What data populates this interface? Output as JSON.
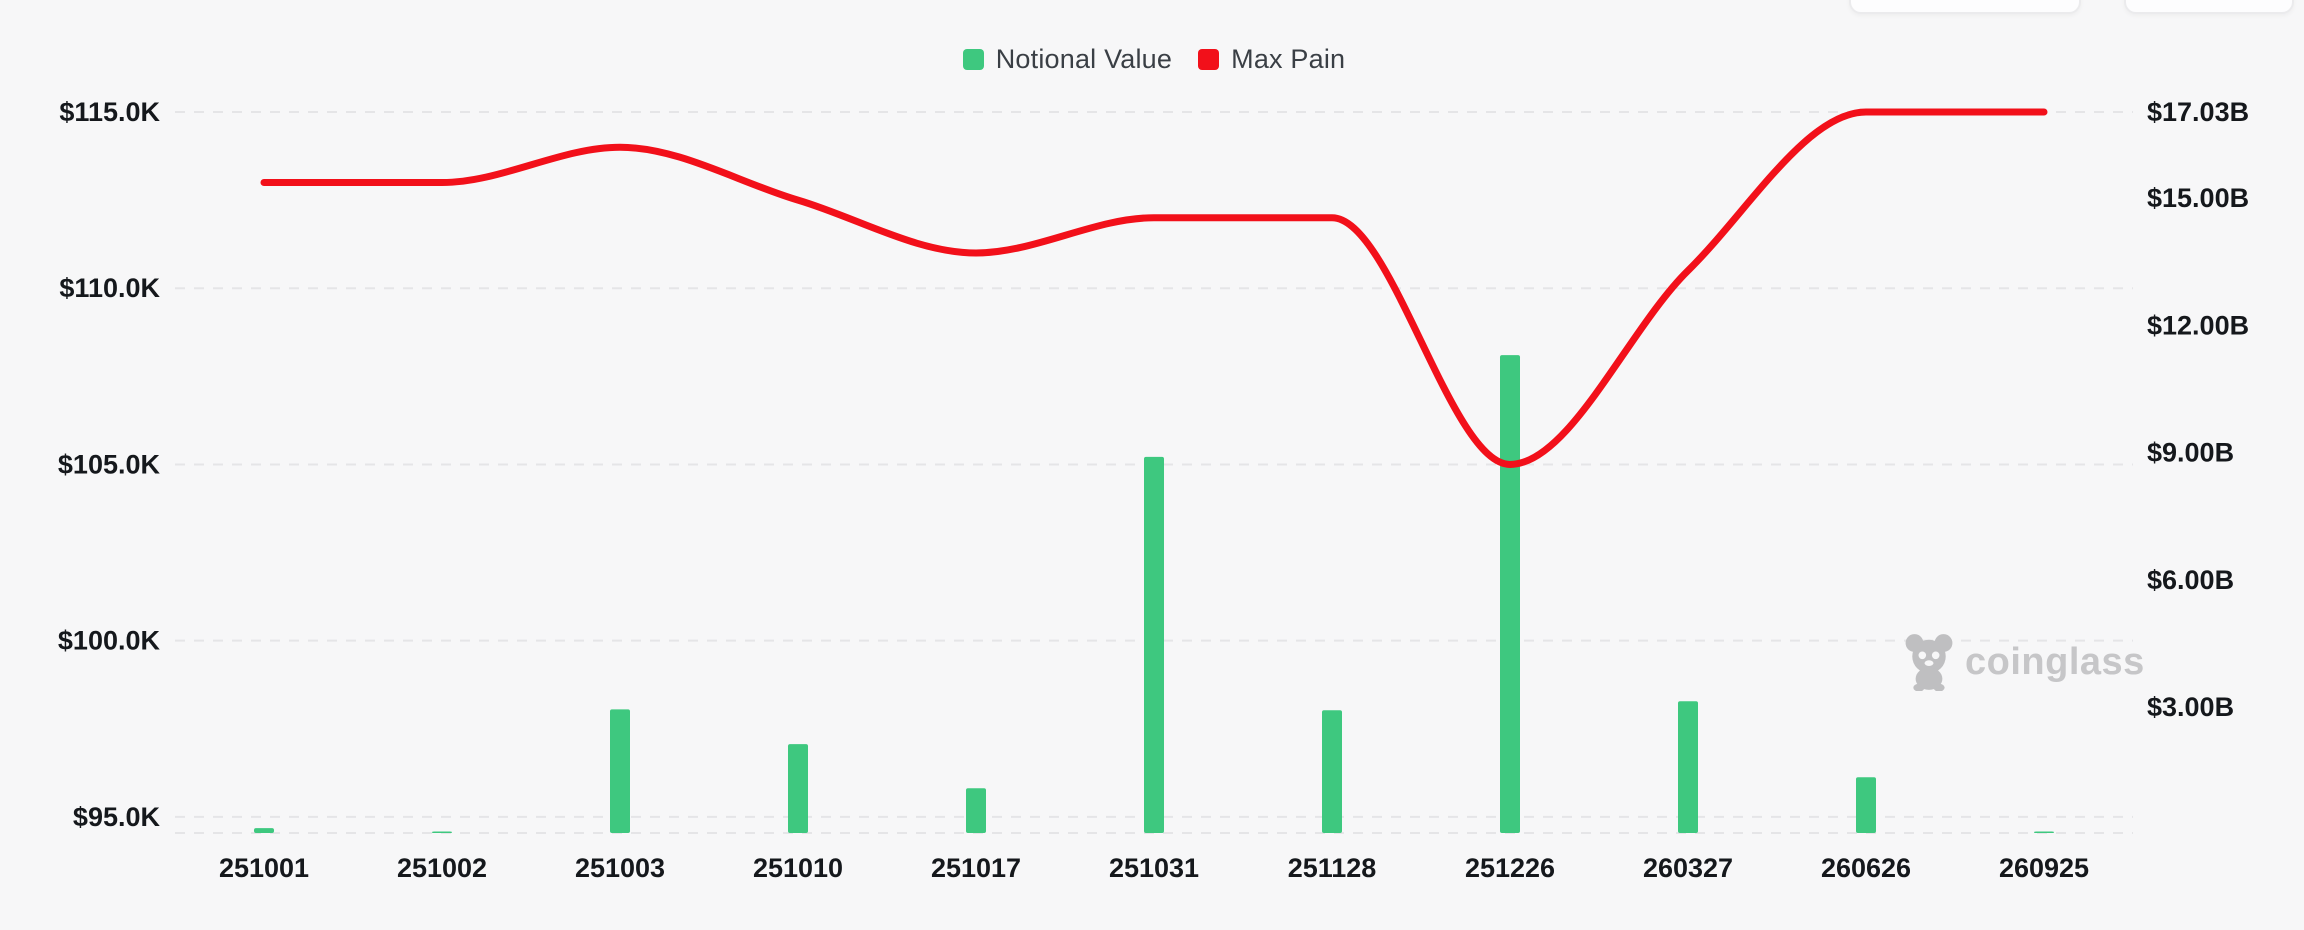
{
  "legend": {
    "items": [
      {
        "label": "Notional Value",
        "color": "#3ec87f"
      },
      {
        "label": "Max Pain",
        "color": "#f2101a"
      }
    ]
  },
  "watermark": {
    "icon": "panda-logo",
    "text": "coinglass"
  },
  "chart_data": {
    "type": "bar+line combo",
    "categories": [
      "251001",
      "251002",
      "251003",
      "251010",
      "251017",
      "251031",
      "251128",
      "251226",
      "260327",
      "260626",
      "260925"
    ],
    "series": [
      {
        "name": "Notional Value",
        "type": "bar",
        "axis": "right",
        "unit": "billion USD",
        "color": "#3ec87f",
        "values": [
          0.15,
          0.06,
          2.95,
          2.13,
          1.09,
          8.9,
          2.93,
          11.3,
          3.14,
          1.35,
          0.04
        ]
      },
      {
        "name": "Max Pain",
        "type": "line",
        "axis": "left",
        "unit": "thousand USD",
        "color": "#f2101a",
        "values": [
          113.0,
          113.0,
          114.0,
          112.5,
          111.0,
          112.0,
          112.0,
          105.0,
          110.5,
          115.0,
          115.0
        ]
      }
    ],
    "left_axis": {
      "tick_labels": [
        "$115.0K",
        "$110.0K",
        "$105.0K",
        "$100.0K",
        "$95.0K"
      ],
      "tick_values": [
        115,
        110,
        105,
        100,
        95
      ],
      "min": 94.5,
      "max": 115
    },
    "right_axis": {
      "tick_labels": [
        "$17.03B",
        "$15.00B",
        "$12.00B",
        "$9.00B",
        "$6.00B",
        "$3.00B"
      ],
      "tick_values": [
        17.03,
        15,
        12,
        9,
        6,
        3
      ],
      "min": 0,
      "max": 17.03
    },
    "title": "",
    "xlabel": "",
    "ylabel": "",
    "legend_position": "top-center",
    "grid": "horizontal dashed lines"
  }
}
